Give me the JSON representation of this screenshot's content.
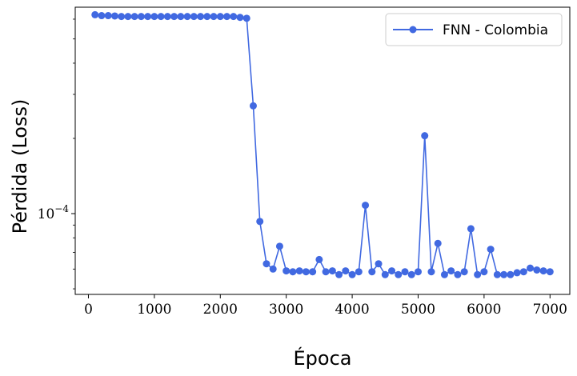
{
  "chart_data": {
    "type": "line",
    "xlabel": "Época",
    "ylabel": "Pérdida (Loss)",
    "yscale": "log",
    "xlim": [
      -200,
      7300
    ],
    "ylim": [
      4.75e-05,
      0.00067
    ],
    "x_ticks": [
      0,
      1000,
      2000,
      3000,
      4000,
      5000,
      6000,
      7000
    ],
    "x_tick_labels": [
      "0",
      "1000",
      "2000",
      "3000",
      "4000",
      "5000",
      "6000",
      "7000"
    ],
    "y_major_ticks": [
      0.0001
    ],
    "y_tick_labels": [
      "10^-4"
    ],
    "y_minor_ticks": [
      5e-05,
      6e-05,
      7e-05,
      8e-05,
      9e-05,
      0.0002,
      0.0003,
      0.0004,
      0.0005,
      0.0006
    ],
    "legend_position": "top-right",
    "grid": false,
    "series": [
      {
        "name": "FNN - Colombia",
        "color": "#4169e1",
        "x": [
          100,
          200,
          300,
          400,
          500,
          600,
          700,
          800,
          900,
          1000,
          1100,
          1200,
          1300,
          1400,
          1500,
          1600,
          1700,
          1800,
          1900,
          2000,
          2100,
          2200,
          2300,
          2400,
          2500,
          2600,
          2700,
          2800,
          2900,
          3000,
          3100,
          3200,
          3300,
          3400,
          3500,
          3600,
          3700,
          3800,
          3900,
          4000,
          4100,
          4200,
          4300,
          4400,
          4500,
          4600,
          4700,
          4800,
          4900,
          5000,
          5100,
          5200,
          5300,
          5400,
          5500,
          5600,
          5700,
          5800,
          5900,
          6000,
          6100,
          6200,
          6300,
          6400,
          6500,
          6600,
          6700,
          6800,
          6900,
          7000
        ],
        "y": [
          0.000625,
          0.00062,
          0.00062,
          0.000618,
          0.000615,
          0.000615,
          0.000615,
          0.000615,
          0.000615,
          0.000615,
          0.000615,
          0.000615,
          0.000615,
          0.000615,
          0.000615,
          0.000615,
          0.000615,
          0.000615,
          0.000615,
          0.000615,
          0.000615,
          0.000615,
          0.00061,
          0.000605,
          0.00027,
          9.3e-05,
          6.3e-05,
          6e-05,
          7.4e-05,
          5.9e-05,
          5.85e-05,
          5.9e-05,
          5.85e-05,
          5.85e-05,
          6.55e-05,
          5.85e-05,
          5.9e-05,
          5.7e-05,
          5.9e-05,
          5.7e-05,
          5.85e-05,
          0.000108,
          5.85e-05,
          6.3e-05,
          5.7e-05,
          5.9e-05,
          5.7e-05,
          5.85e-05,
          5.7e-05,
          5.85e-05,
          0.000205,
          5.85e-05,
          7.6e-05,
          5.7e-05,
          5.9e-05,
          5.7e-05,
          5.85e-05,
          8.7e-05,
          5.7e-05,
          5.85e-05,
          7.2e-05,
          5.7e-05,
          5.7e-05,
          5.7e-05,
          5.8e-05,
          5.85e-05,
          6.05e-05,
          5.95e-05,
          5.9e-05,
          5.85e-05
        ]
      }
    ]
  }
}
